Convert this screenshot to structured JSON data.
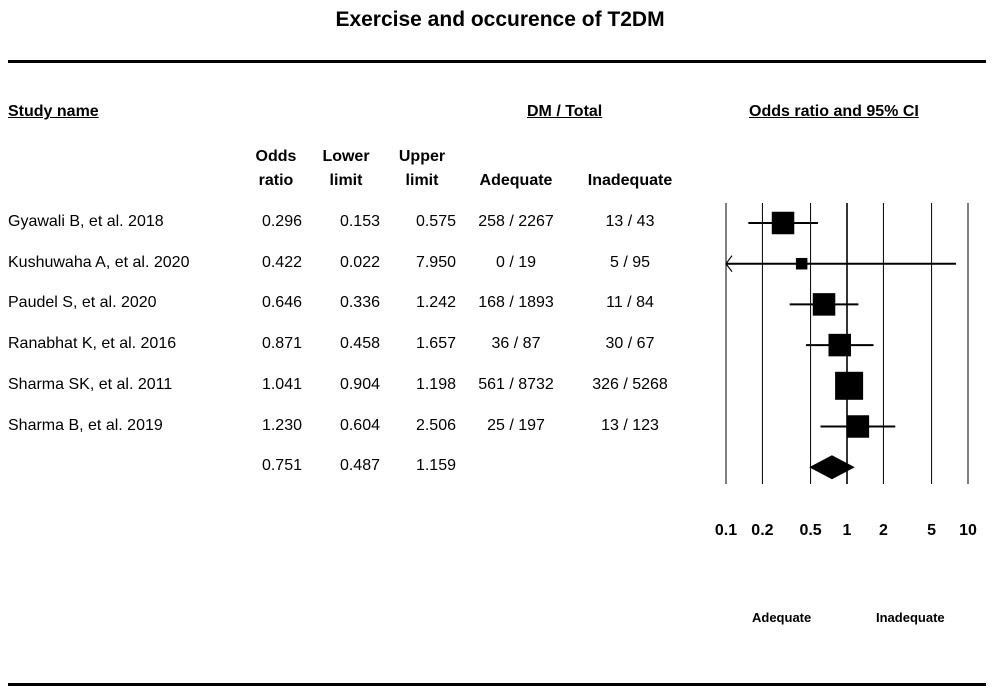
{
  "title": "Exercise and occurence of T2DM",
  "headers": {
    "study_name": "Study name",
    "group": "DM / Total",
    "plot": "Odds ratio and 95% CI",
    "odds": "Odds ratio",
    "lower": "Lower limit",
    "upper": "Upper limit",
    "adequate": "Adequate",
    "inadequate": "Inadequate"
  },
  "favours": {
    "left": "Adequate",
    "right": "Inadequate"
  },
  "chart_data": {
    "type": "forest",
    "scale": "log",
    "xlim": [
      0.1,
      10
    ],
    "x_ticks": [
      "0.1",
      "0.2",
      "0.5",
      "1",
      "2",
      "5",
      "10"
    ],
    "x_tick_values": [
      0.1,
      0.2,
      0.5,
      1,
      2,
      5,
      10
    ],
    "studies": [
      {
        "name": "Gyawali B, et al. 2018",
        "or": "0.296",
        "lower": "0.153",
        "upper": "0.575",
        "adequate": "258 / 2267",
        "inadequate": "13 / 43",
        "weight": 3
      },
      {
        "name": "Kushuwaha A, et al. 2020",
        "or": "0.422",
        "lower": "0.022",
        "upper": "7.950",
        "adequate": "0 / 19",
        "inadequate": "5 / 95",
        "weight": 1
      },
      {
        "name": "Paudel S, et al. 2020",
        "or": "0.646",
        "lower": "0.336",
        "upper": "1.242",
        "adequate": "168 / 1893",
        "inadequate": "11 / 84",
        "weight": 3
      },
      {
        "name": "Ranabhat K, et al. 2016",
        "or": "0.871",
        "lower": "0.458",
        "upper": "1.657",
        "adequate": "36 / 87",
        "inadequate": "30 / 67",
        "weight": 3
      },
      {
        "name": "Sharma SK, et al. 2011",
        "or": "1.041",
        "lower": "0.904",
        "upper": "1.198",
        "adequate": "561 / 8732",
        "inadequate": "326 / 5268",
        "weight": 4
      },
      {
        "name": "Sharma B, et al. 2019",
        "or": "1.230",
        "lower": "0.604",
        "upper": "2.506",
        "adequate": "25 / 197",
        "inadequate": "13 / 123",
        "weight": 3
      }
    ],
    "summary": {
      "or": "0.751",
      "lower": "0.487",
      "upper": "1.159"
    }
  }
}
